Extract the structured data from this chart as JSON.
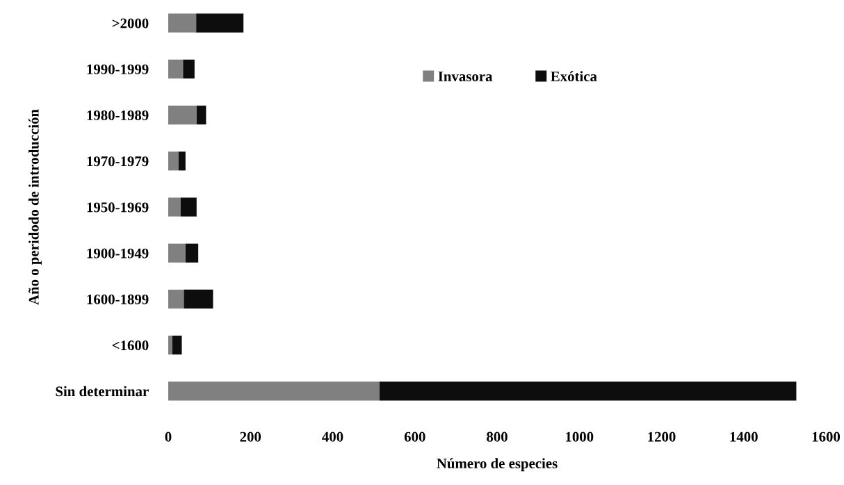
{
  "chart_data": {
    "type": "bar",
    "orientation": "horizontal",
    "stacked": true,
    "xlabel": "Número de especies",
    "ylabel": "Año o peridodo de introducción",
    "categories": [
      ">2000",
      "1990-1999",
      "1980-1989",
      "1970-1979",
      "1950-1969",
      "1900-1949",
      "1600-1899",
      "<1600",
      "Sin determinar"
    ],
    "series": [
      {
        "name": "Invasora",
        "color": "#808080",
        "values": [
          68,
          36,
          69,
          25,
          30,
          42,
          38,
          10,
          514
        ]
      },
      {
        "name": "Exótica",
        "color": "#0d0d0d",
        "values": [
          115,
          28,
          23,
          17,
          39,
          31,
          71,
          23,
          1014
        ]
      }
    ],
    "xlim": [
      0,
      1600
    ],
    "xticks": [
      0,
      200,
      400,
      600,
      800,
      1000,
      1200,
      1400,
      1600
    ],
    "grid": false,
    "legend": "top"
  }
}
